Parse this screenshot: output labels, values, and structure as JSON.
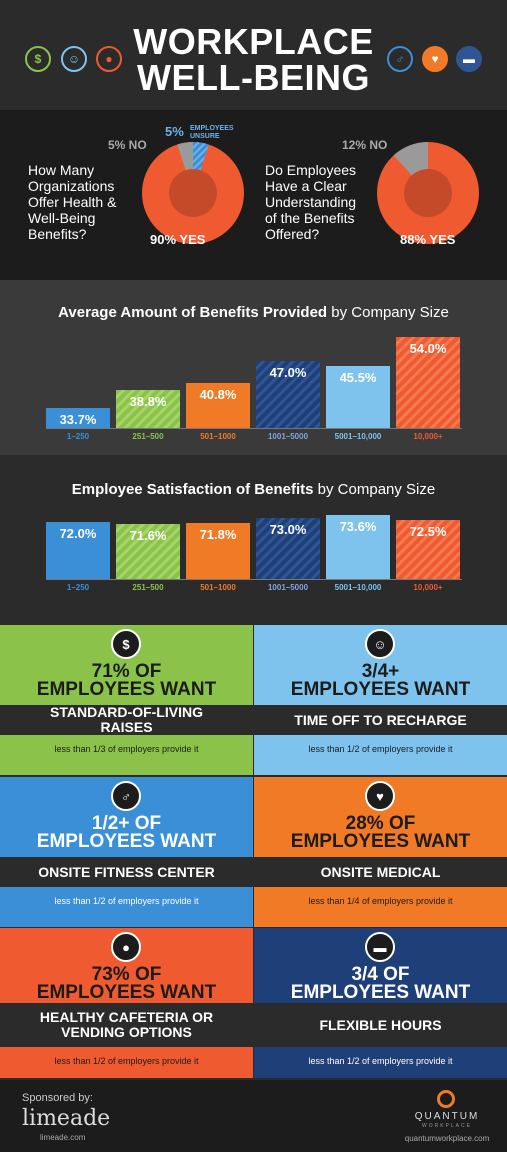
{
  "header": {
    "title_line1": "WORKPLACE",
    "title_line2": "WELL-BEING",
    "left_icons": [
      "dollar-icon",
      "smiley-icon",
      "apple-icon"
    ],
    "right_icons": [
      "runner-icon",
      "heart-icon",
      "briefcase-icon"
    ],
    "icon_colors": [
      "#8bc34a",
      "#7ec3ee",
      "#f05a30",
      "#3a8fd6",
      "#f07a26",
      "#2f5594"
    ]
  },
  "pies": [
    {
      "question": "How Many Organizations Offer Health & Well-Being Benefits?",
      "yes_label": "90% YES",
      "no_label": "5% NO",
      "unsure_pct": "5%",
      "unsure_label": "EMPLOYEES UNSURE",
      "values": [
        90,
        5,
        5
      ]
    },
    {
      "question": "Do Employees Have a Clear Understanding of the Benefits Offered?",
      "yes_label": "88% YES",
      "no_label": "12% NO",
      "values": [
        88,
        12
      ]
    }
  ],
  "chart_data": [
    {
      "type": "bar",
      "title": "Average Amount of Benefits Provided",
      "subtitle": "by Company Size",
      "categories": [
        "1–250",
        "251–500",
        "501–1000",
        "1001–5000",
        "5001–10,000",
        "10,000+"
      ],
      "values": [
        33.7,
        38.8,
        40.8,
        47.0,
        45.5,
        54.0
      ],
      "value_labels": [
        "33.7%",
        "38.8%",
        "40.8%",
        "47.0%",
        "45.5%",
        "54.0%"
      ],
      "colors": [
        "#3a8fd6",
        "#8bc34a",
        "#f07a26",
        "#1f3f78",
        "#7ec3ee",
        "#f05a30"
      ],
      "ylim": [
        28,
        55
      ]
    },
    {
      "type": "bar",
      "title": "Employee Satisfaction of Benefits",
      "subtitle": "by Company Size",
      "categories": [
        "1–250",
        "251–500",
        "501–1000",
        "1001–5000",
        "5001–10,000",
        "10,000+"
      ],
      "values": [
        72.0,
        71.6,
        71.8,
        73.0,
        73.6,
        72.5
      ],
      "value_labels": [
        "72.0%",
        "71.6%",
        "71.8%",
        "73.0%",
        "73.6%",
        "72.5%"
      ],
      "colors": [
        "#3a8fd6",
        "#8bc34a",
        "#f07a26",
        "#1f3f78",
        "#7ec3ee",
        "#f05a30"
      ],
      "ylim": [
        60,
        74
      ]
    }
  ],
  "panels": [
    {
      "icon": "dollar-icon",
      "stat1": "71% OF",
      "stat2": "EMPLOYEES WANT",
      "want": "STANDARD-OF-LIVING RAISES",
      "provide": "less than 1/3 of employers provide it",
      "color": "#8bc34a"
    },
    {
      "icon": "smiley-icon",
      "stat1": "3/4+",
      "stat2": "EMPLOYEES WANT",
      "want": "TIME OFF TO RECHARGE",
      "provide": "less than 1/2 of employers provide it",
      "color": "#7ec3ee"
    },
    {
      "icon": "runner-icon",
      "stat1": "1/2+ OF",
      "stat2": "EMPLOYEES WANT",
      "want": "ONSITE FITNESS CENTER",
      "provide": "less than 1/2 of employers provide it",
      "color": "#3a8fd6"
    },
    {
      "icon": "heart-icon",
      "stat1": "28% OF",
      "stat2": "EMPLOYEES WANT",
      "want": "ONSITE MEDICAL",
      "provide": "less than 1/4 of employers provide it",
      "color": "#f07a26"
    },
    {
      "icon": "apple-icon",
      "stat1": "73% OF",
      "stat2": "EMPLOYEES WANT",
      "want": "HEALTHY CAFETERIA OR VENDING OPTIONS",
      "provide": "less than 1/2 of employers provide it",
      "color": "#f05a30"
    },
    {
      "icon": "briefcase-icon",
      "stat1": "3/4 OF",
      "stat2": "EMPLOYEES WANT",
      "want": "FLEXIBLE HOURS",
      "provide": "less than 1/2 of employers provide it",
      "color": "#1f3f78"
    }
  ],
  "footer": {
    "sponsored": "Sponsored by:",
    "sponsor_logo": "limeade",
    "sponsor_url": "limeade.com",
    "brand_logo": "QUANTUM",
    "brand_sub": "WORKPLACE",
    "brand_url": "quantumworkplace.com"
  }
}
